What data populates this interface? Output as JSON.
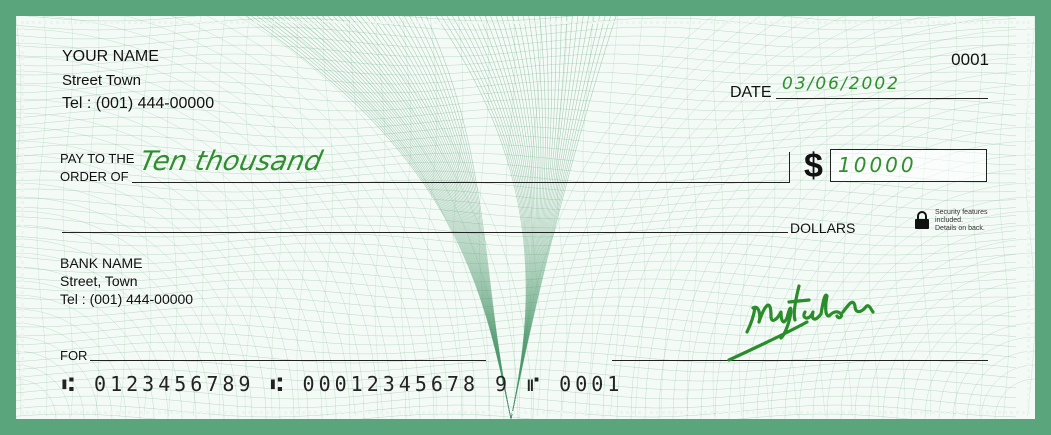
{
  "payer": {
    "name": "YOUR NAME",
    "street": "Street Town",
    "tel": "Tel : (001) 444-00000"
  },
  "check_number": "0001",
  "date": {
    "label": "DATE",
    "value": "03/06/2002"
  },
  "payee": {
    "label_line1": "PAY TO THE",
    "label_line2": "ORDER OF"
  },
  "amount": {
    "currency_symbol": "$",
    "numeric": "10000",
    "words": "Ten thousand",
    "dollars_label": "DOLLARS"
  },
  "security": {
    "line1": "Security features",
    "line2": "included.",
    "line3": "Details on back.",
    "icon": "lock-icon"
  },
  "bank": {
    "name": "BANK NAME",
    "street": "Street, Town",
    "tel": "Tel : (001) 444-00000"
  },
  "memo": {
    "label": "FOR"
  },
  "micr": {
    "routing": "⑆ 0123456789 ⑆",
    "account": "00012345678 9",
    "check": "⑈ 0001"
  },
  "signature": {
    "text": "Mujtaba"
  },
  "colors": {
    "border": "#5aa57c",
    "pattern": "#4f9a6f",
    "ink": "#2f8f2f"
  }
}
